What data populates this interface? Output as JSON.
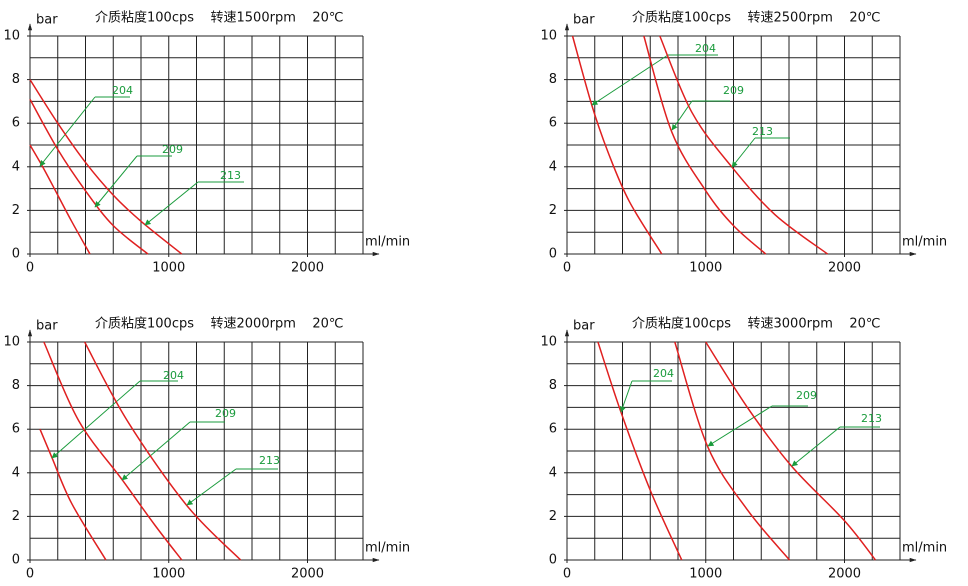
{
  "chart_data": [
    {
      "type": "line",
      "title": "介质粘度100cps    转速1500rpm    20℃",
      "y_label": "bar",
      "x_label": "ml/min",
      "xlim": [
        0,
        2400
      ],
      "ylim": [
        0,
        10
      ],
      "xticks": [
        0,
        1000,
        2000
      ],
      "yticks": [
        0,
        2,
        4,
        6,
        8,
        10
      ],
      "label_color": "#1a9b3c",
      "series": [
        {
          "name": "204",
          "color": "#e02020",
          "x": [
            0,
            100,
            200,
            300,
            432
          ],
          "values": [
            5,
            3.9,
            2.7,
            1.5,
            0
          ]
        },
        {
          "name": "209",
          "color": "#e02020",
          "x": [
            0,
            200,
            400,
            600,
            850
          ],
          "values": [
            7.1,
            4.8,
            2.9,
            1.3,
            0
          ]
        },
        {
          "name": "213",
          "color": "#e02020",
          "x": [
            0,
            200,
            400,
            600,
            800,
            1094
          ],
          "values": [
            8,
            6,
            4.2,
            2.7,
            1.5,
            0
          ]
        }
      ]
    },
    {
      "type": "line",
      "title": "介质粘度100cps    转速2500rpm    20℃",
      "y_label": "bar",
      "x_label": "ml/min",
      "xlim": [
        0,
        2400
      ],
      "ylim": [
        0,
        10
      ],
      "xticks": [
        0,
        1000,
        2000
      ],
      "yticks": [
        0,
        2,
        4,
        6,
        8,
        10
      ],
      "label_color": "#1a9b3c",
      "series": [
        {
          "name": "204",
          "color": "#e02020",
          "x": [
            40,
            180,
            300,
            450,
            683
          ],
          "values": [
            10,
            6.8,
            4.6,
            2.4,
            0
          ]
        },
        {
          "name": "209",
          "color": "#e02020",
          "x": [
            554,
            755,
            1000,
            1200,
            1432
          ],
          "values": [
            10,
            5.6,
            2.9,
            1.3,
            0
          ]
        },
        {
          "name": "213",
          "color": "#e02020",
          "x": [
            669,
            900,
            1187,
            1500,
            1878
          ],
          "values": [
            10,
            6.5,
            4,
            1.8,
            0
          ]
        }
      ]
    },
    {
      "type": "line",
      "title": "介质粘度100cps    转速2000rpm    20℃",
      "y_label": "bar",
      "x_label": "ml/min",
      "xlim": [
        0,
        2400
      ],
      "ylim": [
        0,
        10
      ],
      "xticks": [
        0,
        1000,
        2000
      ],
      "yticks": [
        0,
        2,
        4,
        6,
        8,
        10
      ],
      "label_color": "#1a9b3c",
      "series": [
        {
          "name": "204",
          "color": "#e02020",
          "x": [
            72,
            158,
            300,
            547
          ],
          "values": [
            6,
            4.7,
            2.6,
            0
          ]
        },
        {
          "name": "209",
          "color": "#e02020",
          "x": [
            100,
            350,
            662,
            900,
            1094
          ],
          "values": [
            10,
            6.4,
            3.7,
            1.6,
            0
          ]
        },
        {
          "name": "213",
          "color": "#e02020",
          "x": [
            394,
            700,
            1130,
            1518
          ],
          "values": [
            10,
            6.4,
            2.5,
            0
          ]
        }
      ]
    },
    {
      "type": "line",
      "title": "介质粘度100cps    转速3000rpm    20℃",
      "y_label": "bar",
      "x_label": "ml/min",
      "xlim": [
        0,
        2400
      ],
      "ylim": [
        0,
        10
      ],
      "xticks": [
        0,
        1000,
        2000
      ],
      "yticks": [
        0,
        2,
        4,
        6,
        8,
        10
      ],
      "label_color": "#1a9b3c",
      "series": [
        {
          "name": "204",
          "color": "#e02020",
          "x": [
            223,
            388,
            600,
            827
          ],
          "values": [
            10,
            6.8,
            3.2,
            0
          ]
        },
        {
          "name": "209",
          "color": "#e02020",
          "x": [
            777,
            1014,
            1300,
            1604
          ],
          "values": [
            10,
            5.2,
            2.3,
            0
          ]
        },
        {
          "name": "213",
          "color": "#e02020",
          "x": [
            1000,
            1300,
            1619,
            2000,
            2223
          ],
          "values": [
            10,
            7,
            4.3,
            1.8,
            0
          ]
        }
      ]
    }
  ]
}
